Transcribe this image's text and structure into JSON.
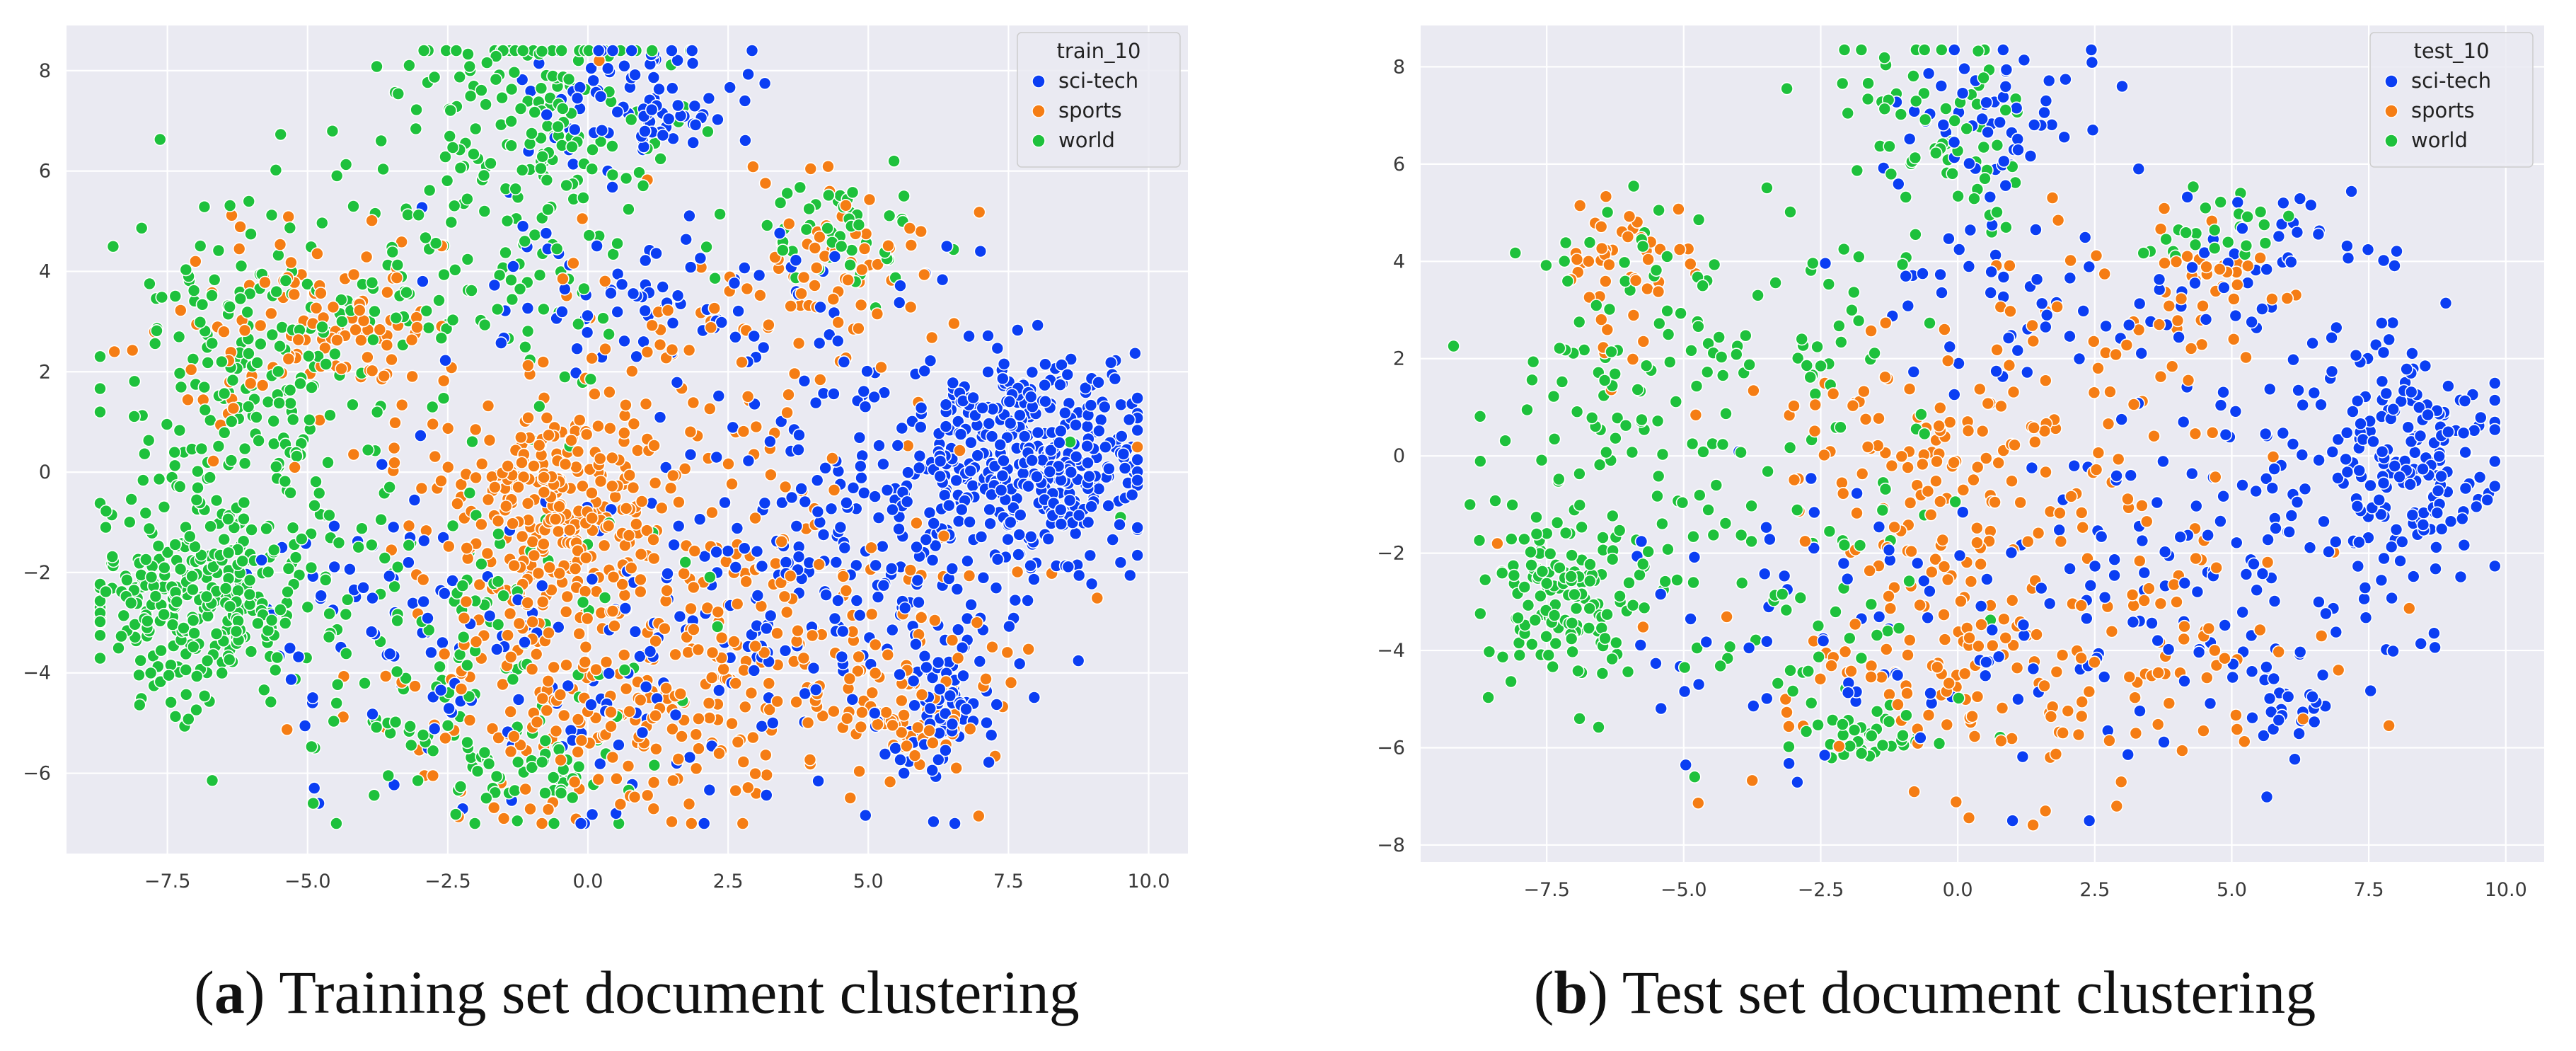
{
  "chart_data": [
    {
      "type": "scatter",
      "caption_letter": "a",
      "caption_text": "Training set document clustering",
      "legend_title": "train_10",
      "legend_position": "top-right",
      "xlim": [
        -9.3,
        10.7
      ],
      "ylim": [
        -7.6,
        8.9
      ],
      "xticks": [
        -7.5,
        -5.0,
        -2.5,
        0.0,
        2.5,
        5.0,
        7.5,
        10.0
      ],
      "xtick_labels": [
        "−7.5",
        "−5.0",
        "−2.5",
        "0.0",
        "2.5",
        "5.0",
        "7.5",
        "10.0"
      ],
      "yticks": [
        -6,
        -4,
        -2,
        0,
        2,
        4,
        6,
        8
      ],
      "ytick_labels": [
        "−6",
        "−4",
        "−2",
        "0",
        "2",
        "4",
        "6",
        "8"
      ],
      "grid": true,
      "series": [
        {
          "name": "sci-tech",
          "color": "#0b3ef3",
          "clusters": [
            {
              "cx": 8.0,
              "cy": 0.3,
              "sx": 1.0,
              "sy": 1.1,
              "n": 380
            },
            {
              "cx": 4.8,
              "cy": -1.2,
              "sx": 1.8,
              "sy": 2.2,
              "n": 240
            },
            {
              "cx": 6.3,
              "cy": -4.7,
              "sx": 0.4,
              "sy": 0.7,
              "n": 70
            },
            {
              "cx": 1.0,
              "cy": 7.3,
              "sx": 0.9,
              "sy": 0.7,
              "n": 90
            },
            {
              "cx": 1.0,
              "cy": 3.5,
              "sx": 1.6,
              "sy": 0.8,
              "n": 80
            },
            {
              "cx": 0.5,
              "cy": -3.5,
              "sx": 2.0,
              "sy": 1.5,
              "n": 100
            },
            {
              "cx": -3.8,
              "cy": -3.0,
              "sx": 1.3,
              "sy": 1.5,
              "n": 60
            }
          ],
          "points": [
            [
              9.7,
              0.5
            ],
            [
              9.5,
              -1.8
            ],
            [
              6.4,
              4.5
            ],
            [
              7.0,
              4.4
            ],
            [
              2.8,
              7.4
            ],
            [
              -4.8,
              -6.6
            ],
            [
              0.5,
              -6.8
            ]
          ]
        },
        {
          "name": "sports",
          "color": "#f57d14",
          "clusters": [
            {
              "cx": -0.8,
              "cy": -1.0,
              "sx": 1.0,
              "sy": 1.3,
              "n": 260
            },
            {
              "cx": 0.6,
              "cy": -4.8,
              "sx": 1.8,
              "sy": 1.0,
              "n": 180
            },
            {
              "cx": 3.8,
              "cy": -3.5,
              "sx": 2.0,
              "sy": 1.6,
              "n": 140
            },
            {
              "cx": -5.0,
              "cy": 2.8,
              "sx": 1.2,
              "sy": 1.0,
              "n": 120
            },
            {
              "cx": 4.5,
              "cy": 4.0,
              "sx": 1.0,
              "sy": 0.9,
              "n": 70
            },
            {
              "cx": 1.5,
              "cy": 0.5,
              "sx": 2.2,
              "sy": 2.2,
              "n": 130
            },
            {
              "cx": 5.8,
              "cy": -4.8,
              "sx": 0.7,
              "sy": 0.7,
              "n": 50
            }
          ],
          "points": [
            [
              0.2,
              8.2
            ],
            [
              3.0,
              -6.4
            ],
            [
              -1.5,
              -6.9
            ],
            [
              9.8,
              0.5
            ],
            [
              -7.0,
              4.2
            ]
          ]
        },
        {
          "name": "world",
          "color": "#1ec13c",
          "clusters": [
            {
              "cx": -7.0,
              "cy": -2.7,
              "sx": 0.9,
              "sy": 1.0,
              "n": 260
            },
            {
              "cx": -6.0,
              "cy": 1.5,
              "sx": 1.2,
              "sy": 2.2,
              "n": 230
            },
            {
              "cx": -1.0,
              "cy": 6.8,
              "sx": 1.3,
              "sy": 1.2,
              "n": 170
            },
            {
              "cx": -2.5,
              "cy": -3.5,
              "sx": 1.6,
              "sy": 1.6,
              "n": 120
            },
            {
              "cx": -1.0,
              "cy": -5.8,
              "sx": 0.9,
              "sy": 0.5,
              "n": 60
            },
            {
              "cx": -2.0,
              "cy": 3.5,
              "sx": 1.4,
              "sy": 1.0,
              "n": 80
            },
            {
              "cx": 4.5,
              "cy": 4.6,
              "sx": 0.8,
              "sy": 0.5,
              "n": 50
            }
          ],
          "points": [
            [
              -8.6,
              -1.1
            ],
            [
              -4.9,
              -6.6
            ],
            [
              9.5,
              -0.9
            ],
            [
              -2.1,
              8.0
            ],
            [
              8.6,
              0.6
            ]
          ]
        }
      ]
    },
    {
      "type": "scatter",
      "caption_letter": "b",
      "caption_text": "Test set document clustering",
      "legend_title": "test_10",
      "legend_position": "top-right",
      "xlim": [
        -9.8,
        10.7
      ],
      "ylim": [
        -8.35,
        8.85
      ],
      "xticks": [
        -7.5,
        -5.0,
        -2.5,
        0.0,
        2.5,
        5.0,
        7.5,
        10.0
      ],
      "xtick_labels": [
        "−7.5",
        "−5.0",
        "−2.5",
        "0.0",
        "2.5",
        "5.0",
        "7.5",
        "10.0"
      ],
      "yticks": [
        -8,
        -6,
        -4,
        -2,
        0,
        2,
        4,
        6,
        8
      ],
      "ytick_labels": [
        "−8",
        "−6",
        "−4",
        "−2",
        "0",
        "2",
        "4",
        "6",
        "8"
      ],
      "grid": true,
      "series": [
        {
          "name": "sci-tech",
          "color": "#0b3ef3",
          "clusters": [
            {
              "cx": 8.1,
              "cy": 0.0,
              "sx": 0.9,
              "sy": 1.3,
              "n": 190
            },
            {
              "cx": 4.8,
              "cy": -1.5,
              "sx": 1.6,
              "sy": 2.0,
              "n": 130
            },
            {
              "cx": 0.5,
              "cy": 7.0,
              "sx": 0.9,
              "sy": 0.8,
              "n": 60
            },
            {
              "cx": 1.0,
              "cy": 3.3,
              "sx": 1.3,
              "sy": 0.8,
              "n": 45
            },
            {
              "cx": 5.5,
              "cy": 3.8,
              "sx": 1.0,
              "sy": 0.8,
              "n": 40
            },
            {
              "cx": 6.2,
              "cy": -5.0,
              "sx": 0.4,
              "sy": 0.6,
              "n": 25
            },
            {
              "cx": 0.0,
              "cy": -3.5,
              "sx": 2.0,
              "sy": 1.5,
              "n": 50
            },
            {
              "cx": -4.0,
              "cy": -3.0,
              "sx": 1.3,
              "sy": 1.5,
              "n": 30
            }
          ],
          "points": [
            [
              1.0,
              -7.5
            ],
            [
              2.4,
              -7.5
            ],
            [
              3.0,
              7.6
            ],
            [
              3.3,
              5.9
            ]
          ]
        },
        {
          "name": "sports",
          "color": "#f57d14",
          "clusters": [
            {
              "cx": -0.5,
              "cy": -0.5,
              "sx": 1.3,
              "sy": 1.5,
              "n": 130
            },
            {
              "cx": 0.0,
              "cy": -4.5,
              "sx": 1.6,
              "sy": 1.0,
              "n": 90
            },
            {
              "cx": 3.5,
              "cy": -4.0,
              "sx": 1.8,
              "sy": 1.3,
              "n": 70
            },
            {
              "cx": -6.0,
              "cy": 3.4,
              "sx": 0.8,
              "sy": 0.9,
              "n": 50
            },
            {
              "cx": 4.5,
              "cy": 3.6,
              "sx": 1.0,
              "sy": 0.8,
              "n": 40
            },
            {
              "cx": 2.0,
              "cy": 0.5,
              "sx": 1.8,
              "sy": 1.8,
              "n": 50
            }
          ],
          "points": [
            [
              2.9,
              -7.2
            ],
            [
              1.6,
              -7.3
            ],
            [
              -8.4,
              -1.8
            ]
          ]
        },
        {
          "name": "world",
          "color": "#1ec13c",
          "clusters": [
            {
              "cx": -7.3,
              "cy": -2.8,
              "sx": 0.7,
              "sy": 0.9,
              "n": 130
            },
            {
              "cx": -6.0,
              "cy": 1.0,
              "sx": 1.2,
              "sy": 2.0,
              "n": 110
            },
            {
              "cx": -0.5,
              "cy": 6.8,
              "sx": 1.0,
              "sy": 1.0,
              "n": 70
            },
            {
              "cx": -2.5,
              "cy": -2.8,
              "sx": 1.6,
              "sy": 1.6,
              "n": 60
            },
            {
              "cx": -1.5,
              "cy": -5.8,
              "sx": 0.9,
              "sy": 0.4,
              "n": 35
            },
            {
              "cx": -3.0,
              "cy": 3.0,
              "sx": 1.5,
              "sy": 1.2,
              "n": 50
            },
            {
              "cx": 4.5,
              "cy": 4.6,
              "sx": 0.8,
              "sy": 0.5,
              "n": 25
            }
          ],
          "points": [
            [
              -8.9,
              -1.0
            ],
            [
              -4.8,
              -6.6
            ],
            [
              -6.9,
              -5.4
            ]
          ]
        }
      ]
    }
  ]
}
